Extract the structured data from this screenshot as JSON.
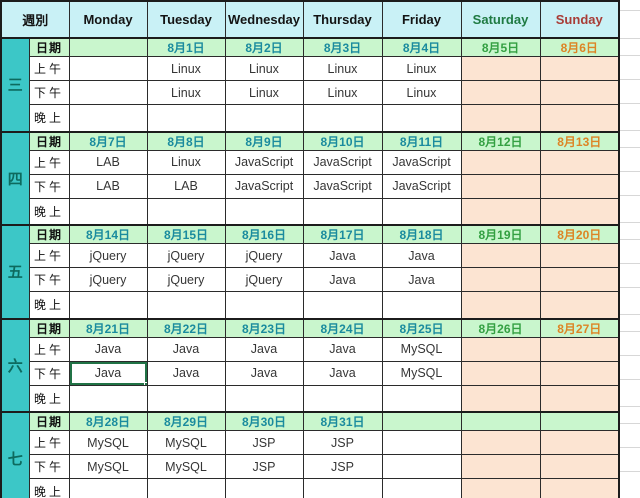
{
  "sheet": {
    "header": {
      "week_column_label": "週別",
      "days": [
        {
          "label": "Monday",
          "text_color": "#141414"
        },
        {
          "label": "Tuesday",
          "text_color": "#141414"
        },
        {
          "label": "Wednesday",
          "text_color": "#141414"
        },
        {
          "label": "Thursday",
          "text_color": "#141414"
        },
        {
          "label": "Friday",
          "text_color": "#141414"
        },
        {
          "label": "Saturday",
          "text_color": "#1f7a42"
        },
        {
          "label": "Sunday",
          "text_color": "#a83c36"
        }
      ]
    },
    "row_labels": {
      "date": "日期",
      "morning": "上午",
      "afternoon": "下午",
      "evening": "晚上"
    },
    "weeks": [
      {
        "label": "三",
        "dates": [
          "",
          "8月1日",
          "8月2日",
          "8月3日",
          "8月4日",
          "8月5日",
          "8月6日"
        ],
        "morning": [
          "",
          "Linux",
          "Linux",
          "Linux",
          "Linux",
          "",
          ""
        ],
        "afternoon": [
          "",
          "Linux",
          "Linux",
          "Linux",
          "Linux",
          "",
          ""
        ],
        "evening": [
          "",
          "",
          "",
          "",
          "",
          "",
          ""
        ]
      },
      {
        "label": "四",
        "dates": [
          "8月7日",
          "8月8日",
          "8月9日",
          "8月10日",
          "8月11日",
          "8月12日",
          "8月13日"
        ],
        "morning": [
          "LAB",
          "Linux",
          "JavaScript",
          "JavaScript",
          "JavaScript",
          "",
          ""
        ],
        "afternoon": [
          "LAB",
          "LAB",
          "JavaScript",
          "JavaScript",
          "JavaScript",
          "",
          ""
        ],
        "evening": [
          "",
          "",
          "",
          "",
          "",
          "",
          ""
        ]
      },
      {
        "label": "五",
        "dates": [
          "8月14日",
          "8月15日",
          "8月16日",
          "8月17日",
          "8月18日",
          "8月19日",
          "8月20日"
        ],
        "morning": [
          "jQuery",
          "jQuery",
          "jQuery",
          "Java",
          "Java",
          "",
          ""
        ],
        "afternoon": [
          "jQuery",
          "jQuery",
          "jQuery",
          "Java",
          "Java",
          "",
          ""
        ],
        "evening": [
          "",
          "",
          "",
          "",
          "",
          "",
          ""
        ]
      },
      {
        "label": "六",
        "dates": [
          "8月21日",
          "8月22日",
          "8月23日",
          "8月24日",
          "8月25日",
          "8月26日",
          "8月27日"
        ],
        "morning": [
          "Java",
          "Java",
          "Java",
          "Java",
          "MySQL",
          "",
          ""
        ],
        "afternoon": [
          "Java",
          "Java",
          "Java",
          "Java",
          "MySQL",
          "",
          ""
        ],
        "evening": [
          "",
          "",
          "",
          "",
          "",
          "",
          ""
        ]
      },
      {
        "label": "七",
        "dates": [
          "8月28日",
          "8月29日",
          "8月30日",
          "8月31日",
          "",
          "",
          ""
        ],
        "morning": [
          "MySQL",
          "MySQL",
          "JSP",
          "JSP",
          "",
          "",
          ""
        ],
        "afternoon": [
          "MySQL",
          "MySQL",
          "JSP",
          "JSP",
          "",
          "",
          ""
        ],
        "evening": [
          "",
          "",
          "",
          "",
          "",
          "",
          ""
        ]
      }
    ],
    "selection": {
      "week_index": 3,
      "row": "afternoon",
      "day_index": 0
    }
  },
  "colors": {
    "header_bg": "#c9f1f6",
    "date_row_bg": "#c9f6cd",
    "weekend_bg": "#fce4d2",
    "week_col_bg": "#3cc7c7",
    "week_char_text": "#0d6a5e",
    "weekday_date_text": "#1a8b9e",
    "saturday_date_text": "#34a042",
    "sunday_date_text": "#dd8425",
    "selection_border": "#217346"
  }
}
